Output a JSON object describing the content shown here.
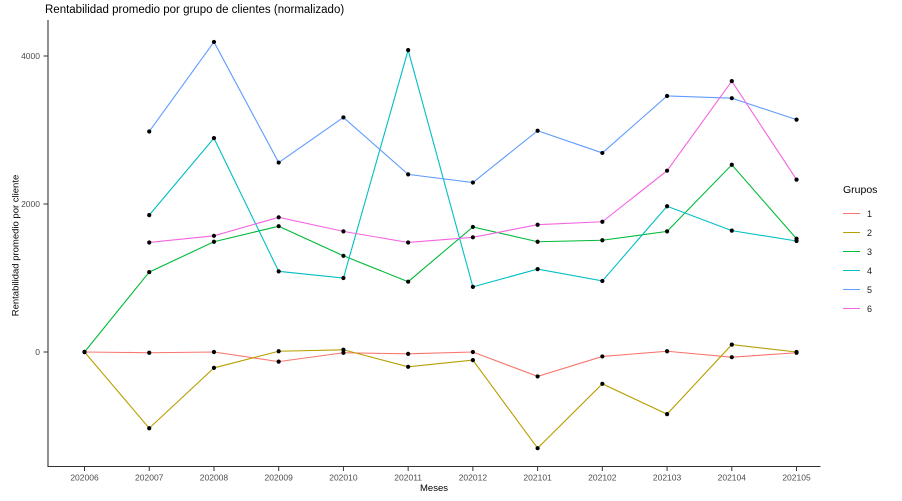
{
  "chart": {
    "title": "Rentabilidad promedio por grupo de clientes (normalizado)",
    "xlabel": "Meses",
    "ylabel": "Rentabilidad promedio por cliente",
    "legend_title": "Grupos"
  },
  "chart_data": {
    "type": "line",
    "title": "Rentabilidad promedio por grupo de clientes (normalizado)",
    "xlabel": "Meses",
    "ylabel": "Rentabilidad promedio por cliente",
    "legend_title": "Grupos",
    "legend_position": "right",
    "grid": false,
    "point_color": "#000000",
    "axis_color": "#333333",
    "tick_label_color": "#4d4d4d",
    "categories": [
      "202006",
      "202007",
      "202008",
      "202009",
      "202010",
      "202011",
      "202012",
      "202101",
      "202102",
      "202103",
      "202104",
      "202105"
    ],
    "yticks": [
      0,
      2000,
      4000
    ],
    "ylim": [
      -1550,
      4480
    ],
    "series": [
      {
        "name": "1",
        "color": "#F8766D",
        "values": [
          0,
          -10,
          0,
          -130,
          -10,
          -25,
          0,
          -330,
          -60,
          10,
          -70,
          -10
        ]
      },
      {
        "name": "2",
        "color": "#B79F00",
        "values": [
          0,
          -1030,
          -215,
          10,
          30,
          -200,
          -110,
          -1300,
          -430,
          -840,
          100,
          0
        ]
      },
      {
        "name": "3",
        "color": "#00BA38",
        "values": [
          0,
          1080,
          1490,
          1700,
          1300,
          950,
          1690,
          1490,
          1510,
          1630,
          2530,
          1530
        ]
      },
      {
        "name": "4",
        "color": "#00BFC4",
        "values": [
          null,
          1850,
          2890,
          1090,
          1000,
          4080,
          880,
          1120,
          960,
          1970,
          1640,
          1500
        ]
      },
      {
        "name": "5",
        "color": "#619CFF",
        "values": [
          null,
          2980,
          4190,
          2560,
          3170,
          2400,
          2290,
          2990,
          2690,
          3460,
          3430,
          3140
        ]
      },
      {
        "name": "6",
        "color": "#F564E3",
        "values": [
          null,
          1480,
          1570,
          1820,
          1630,
          1480,
          1550,
          1720,
          1760,
          2450,
          3660,
          2330
        ]
      }
    ]
  }
}
